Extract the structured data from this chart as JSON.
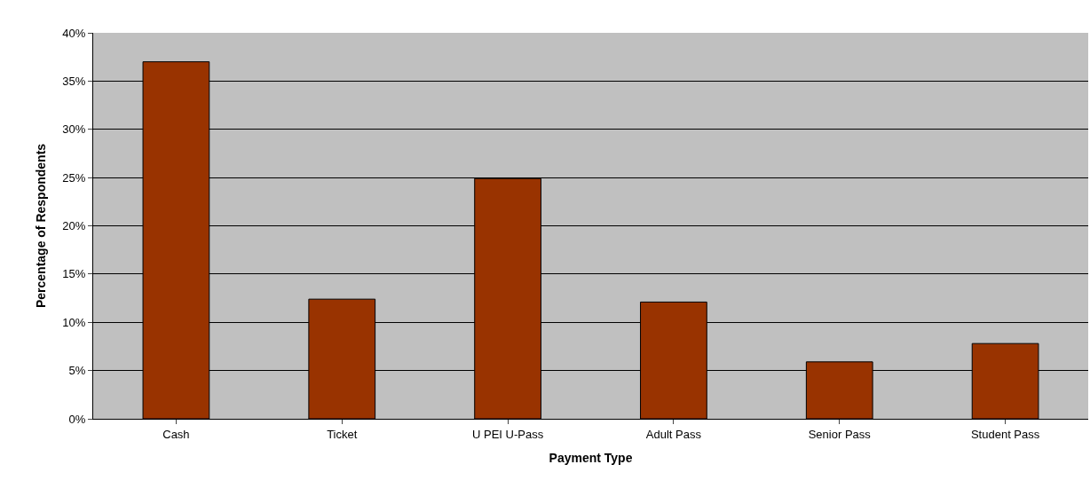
{
  "chart_data": {
    "type": "bar",
    "xlabel": "Payment Type",
    "ylabel": "Percentage of Respondents",
    "categories": [
      "Cash",
      "Ticket",
      "U PEI U-Pass",
      "Adult Pass",
      "Senior Pass",
      "Student Pass"
    ],
    "values": [
      37,
      12.4,
      24.9,
      12.1,
      5.9,
      7.8
    ],
    "color": "#993300",
    "ylim": [
      0,
      40
    ],
    "yticks": [
      {
        "value": 0,
        "label": "0%"
      },
      {
        "value": 5,
        "label": "5%"
      },
      {
        "value": 10,
        "label": "10%"
      },
      {
        "value": 15,
        "label": "15%"
      },
      {
        "value": 20,
        "label": "20%"
      },
      {
        "value": 25,
        "label": "25%"
      },
      {
        "value": 30,
        "label": "30%"
      },
      {
        "value": 35,
        "label": "35%"
      },
      {
        "value": 40,
        "label": "40%"
      }
    ],
    "grid": "y"
  }
}
